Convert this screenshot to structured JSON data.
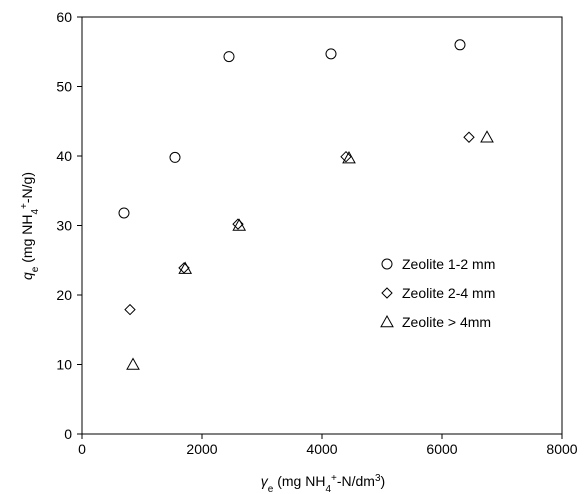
{
  "chart_data": {
    "type": "scatter",
    "title": "",
    "xlim": [
      0,
      8000
    ],
    "ylim": [
      0,
      60
    ],
    "xticks": [
      0,
      2000,
      4000,
      6000,
      8000
    ],
    "yticks": [
      0,
      10,
      20,
      30,
      40,
      50,
      60
    ],
    "xlabel": {
      "symbol": "γ",
      "sub": "e",
      "pre": " (mg NH",
      "sub2": "4",
      "sup": "+",
      "post": "-N/dm",
      "sup2": "3",
      "end": ")"
    },
    "ylabel": {
      "symbol": "q",
      "sub": "e",
      "pre": " (mg NH",
      "sub2": "4",
      "sup": "+",
      "post": "-N/g)"
    },
    "legend_position": "center-right",
    "grid": false,
    "series": [
      {
        "name": "Zeolite 1-2 mm",
        "marker": "circle",
        "points": [
          [
            700,
            31.8
          ],
          [
            1550,
            39.8
          ],
          [
            2450,
            54.3
          ],
          [
            4150,
            54.7
          ],
          [
            6300,
            56.0
          ]
        ]
      },
      {
        "name": "Zeolite 2-4 mm",
        "marker": "diamond",
        "points": [
          [
            800,
            17.9
          ],
          [
            1700,
            23.9
          ],
          [
            2600,
            30.2
          ],
          [
            4400,
            39.9
          ],
          [
            6450,
            42.7
          ]
        ]
      },
      {
        "name": "Zeolite > 4mm",
        "marker": "triangle",
        "points": [
          [
            850,
            10.0
          ],
          [
            1720,
            23.8
          ],
          [
            2620,
            30.0
          ],
          [
            4450,
            39.7
          ],
          [
            6750,
            42.7
          ]
        ]
      }
    ]
  }
}
